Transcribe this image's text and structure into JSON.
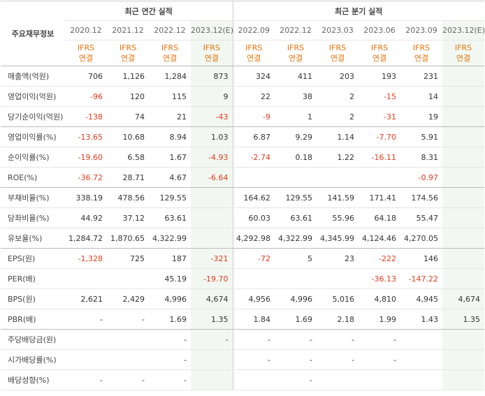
{
  "header": {
    "corner": "주요재무정보",
    "annual_title": "최근 연간 실적",
    "quarter_title": "최근 분기 실적",
    "periods": [
      "2020.12",
      "2021.12",
      "2022.12",
      "2023.12(E)",
      "2022.09",
      "2022.12",
      "2023.03",
      "2023.06",
      "2023.09",
      "2023.12(E)"
    ],
    "basis_top": "IFRS",
    "basis_bottom": "연결"
  },
  "table": {
    "rows": [
      {
        "label": "매출액(억원)",
        "cells": [
          "706",
          "1,126",
          "1,284",
          "873",
          "324",
          "411",
          "203",
          "193",
          "231",
          null
        ]
      },
      {
        "label": "영업이익(억원)",
        "cells": [
          "-96",
          "120",
          "115",
          "9",
          "22",
          "38",
          "2",
          "-15",
          "14",
          null
        ]
      },
      {
        "label": "당기순이익(억원)",
        "cells": [
          "-138",
          "74",
          "21",
          "-43",
          "-9",
          "1",
          "2",
          "-31",
          "19",
          null
        ]
      },
      {
        "label": "영업이익률(%)",
        "cells": [
          "-13.65",
          "10.68",
          "8.94",
          "1.03",
          "6.87",
          "9.29",
          "1.14",
          "-7.70",
          "5.91",
          null
        ]
      },
      {
        "label": "순이익률(%)",
        "cells": [
          "-19.60",
          "6.58",
          "1.67",
          "-4.93",
          "-2.74",
          "0.18",
          "1.22",
          "-16.11",
          "8.31",
          null
        ]
      },
      {
        "label": "ROE(%)",
        "cells": [
          "-36.72",
          "28.71",
          "4.67",
          "-6.64",
          null,
          null,
          null,
          null,
          "-0.97",
          null
        ]
      },
      {
        "label": "부채비율(%)",
        "cells": [
          "338.19",
          "478.56",
          "129.55",
          null,
          "164.62",
          "129.55",
          "141.59",
          "171.41",
          "174.56",
          null
        ]
      },
      {
        "label": "당좌비율(%)",
        "cells": [
          "44.92",
          "37.12",
          "63.61",
          null,
          "60.03",
          "63.61",
          "55.96",
          "64.18",
          "55.47",
          null
        ]
      },
      {
        "label": "유보율(%)",
        "cells": [
          "1,284.72",
          "1,870.65",
          "4,322.99",
          null,
          "4,292.98",
          "4,322.99",
          "4,345.99",
          "4,124.46",
          "4,270.05",
          null
        ]
      },
      {
        "label": "EPS(원)",
        "cells": [
          "-1,328",
          "725",
          "187",
          "-321",
          "-72",
          "5",
          "23",
          "-222",
          "146",
          null
        ]
      },
      {
        "label": "PER(배)",
        "cells": [
          null,
          null,
          "45.19",
          "-19.70",
          null,
          null,
          null,
          "-36.13",
          "-147.22",
          null
        ]
      },
      {
        "label": "BPS(원)",
        "cells": [
          "2,621",
          "2,429",
          "4,996",
          "4,674",
          "4,956",
          "4,996",
          "5,016",
          "4,810",
          "4,945",
          "4,674"
        ]
      },
      {
        "label": "PBR(배)",
        "cells": [
          "-",
          "-",
          "1.69",
          "1.35",
          "1.84",
          "1.69",
          "2.18",
          "1.99",
          "1.43",
          "1.35"
        ]
      },
      {
        "label": "주당배당금(원)",
        "cells": [
          null,
          null,
          "-",
          "-",
          "-",
          "-",
          "-",
          "-",
          null,
          null
        ]
      },
      {
        "label": "시가배당률(%)",
        "cells": [
          null,
          null,
          "-",
          null,
          "-",
          "-",
          "-",
          "-",
          null,
          null
        ]
      },
      {
        "label": "배당성향(%)",
        "cells": [
          "-",
          "-",
          "-",
          null,
          null,
          "-",
          null,
          null,
          null,
          null
        ]
      }
    ]
  }
}
